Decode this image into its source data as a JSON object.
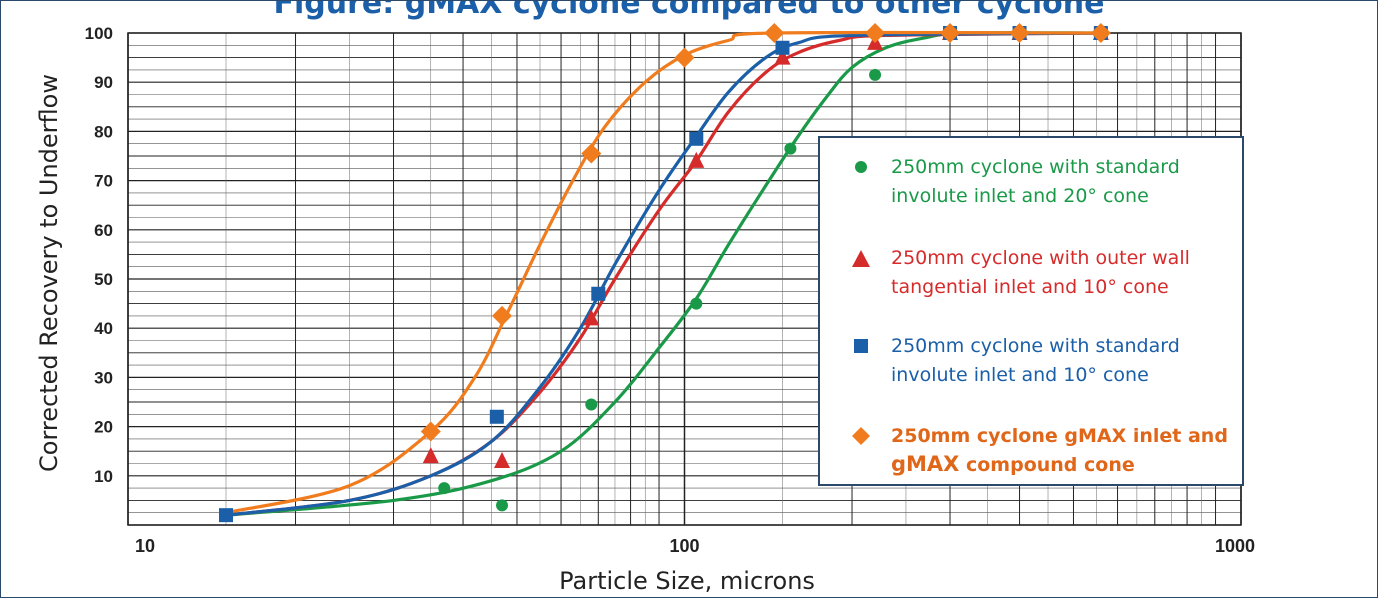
{
  "chart_data": {
    "type": "scatter",
    "title": "Figure: gMAX cyclone compared to other cyclone",
    "xlabel": "Particle Size, microns",
    "ylabel": "Corrected Recovery to Underflow",
    "xscale": "log",
    "xlim": [
      10,
      1000
    ],
    "ylim": [
      0,
      100
    ],
    "x_tick_labels": [
      "10",
      "100",
      "1000"
    ],
    "y_tick_labels": [
      "10",
      "20",
      "30",
      "40",
      "50",
      "60",
      "70",
      "80",
      "90",
      "100"
    ],
    "grid": true,
    "legend_position": "right",
    "series": [
      {
        "name": "250mm cyclone with standard involute inlet and 20° cone",
        "color": "#1a9a48",
        "marker": "circle",
        "points": [
          [
            37,
            7.5
          ],
          [
            47,
            4
          ],
          [
            68,
            24.5
          ],
          [
            105,
            45
          ],
          [
            155,
            76.5
          ],
          [
            220,
            91.5
          ],
          [
            300,
            100
          ],
          [
            400,
            100
          ],
          [
            560,
            100
          ]
        ],
        "curve": [
          [
            15,
            2
          ],
          [
            30,
            5
          ],
          [
            45,
            9
          ],
          [
            60,
            15
          ],
          [
            75,
            25
          ],
          [
            90,
            36
          ],
          [
            105,
            46
          ],
          [
            120,
            57
          ],
          [
            140,
            69
          ],
          [
            160,
            79
          ],
          [
            180,
            87
          ],
          [
            200,
            93
          ],
          [
            230,
            97
          ],
          [
            270,
            99
          ],
          [
            320,
            100
          ],
          [
            560,
            100
          ]
        ]
      },
      {
        "name": "250mm cyclone with outer wall tangential inlet and 10° cone",
        "color": "#d62b2b",
        "marker": "triangle",
        "points": [
          [
            35,
            14
          ],
          [
            47,
            13
          ],
          [
            68,
            42
          ],
          [
            105,
            74
          ],
          [
            150,
            95
          ],
          [
            220,
            98
          ],
          [
            300,
            100
          ],
          [
            400,
            100
          ],
          [
            560,
            100
          ]
        ],
        "curve": [
          [
            15,
            2
          ],
          [
            25,
            5
          ],
          [
            35,
            10
          ],
          [
            45,
            17
          ],
          [
            55,
            27
          ],
          [
            65,
            38
          ],
          [
            75,
            50
          ],
          [
            90,
            64
          ],
          [
            105,
            74
          ],
          [
            120,
            84
          ],
          [
            140,
            92
          ],
          [
            160,
            96
          ],
          [
            190,
            98.5
          ],
          [
            230,
            99.5
          ],
          [
            560,
            100
          ]
        ]
      },
      {
        "name": "250mm cyclone with standard involute inlet and 10° cone",
        "color": "#1a5fa8",
        "marker": "square",
        "points": [
          [
            15,
            2
          ],
          [
            46,
            22
          ],
          [
            70,
            47
          ],
          [
            105,
            78.5
          ],
          [
            150,
            97
          ],
          [
            300,
            100
          ],
          [
            400,
            100
          ],
          [
            560,
            100
          ]
        ],
        "curve": [
          [
            15,
            2
          ],
          [
            25,
            5
          ],
          [
            35,
            10
          ],
          [
            45,
            17
          ],
          [
            55,
            28
          ],
          [
            65,
            40
          ],
          [
            75,
            53
          ],
          [
            90,
            68
          ],
          [
            105,
            79
          ],
          [
            120,
            88
          ],
          [
            140,
            95
          ],
          [
            160,
            98
          ],
          [
            200,
            99.5
          ],
          [
            560,
            100
          ]
        ]
      },
      {
        "name": "250mm cyclone gMAX inlet and gMAX compound cone",
        "color": "#f07c1d",
        "marker": "diamond",
        "points": [
          [
            35,
            19
          ],
          [
            47,
            42.5
          ],
          [
            68,
            75.5
          ],
          [
            100,
            95
          ],
          [
            145,
            100
          ],
          [
            220,
            100
          ],
          [
            300,
            100
          ],
          [
            400,
            100
          ],
          [
            560,
            100
          ]
        ],
        "curve": [
          [
            15,
            2.5
          ],
          [
            25,
            8
          ],
          [
            35,
            19
          ],
          [
            42,
            30
          ],
          [
            48,
            43
          ],
          [
            55,
            57
          ],
          [
            63,
            70
          ],
          [
            72,
            81
          ],
          [
            85,
            90
          ],
          [
            100,
            95.5
          ],
          [
            120,
            98.5
          ],
          [
            145,
            100
          ],
          [
            560,
            100
          ]
        ]
      }
    ]
  },
  "legend": {
    "entries": [
      {
        "line1": "250mm cyclone with standard",
        "line2": "involute inlet and 20° cone",
        "color": "#1a9a48",
        "marker": "circle",
        "bold": false
      },
      {
        "line1": "250mm cyclone with outer wall",
        "line2": "tangential inlet and 10° cone",
        "color": "#d62b2b",
        "marker": "triangle",
        "bold": false
      },
      {
        "line1": "250mm cyclone with standard",
        "line2": "involute inlet and 10° cone",
        "color": "#1a5fa8",
        "marker": "square",
        "bold": false
      },
      {
        "line1": "250mm cyclone gMAX inlet and",
        "line2a": "gMAX",
        "line2b": " compound cone",
        "color": "#e0671a",
        "marker": "diamond",
        "bold": true
      }
    ]
  },
  "colors": {
    "frame": "#2b4a6b",
    "grid": "#333333",
    "title": "#1a5fa8"
  }
}
